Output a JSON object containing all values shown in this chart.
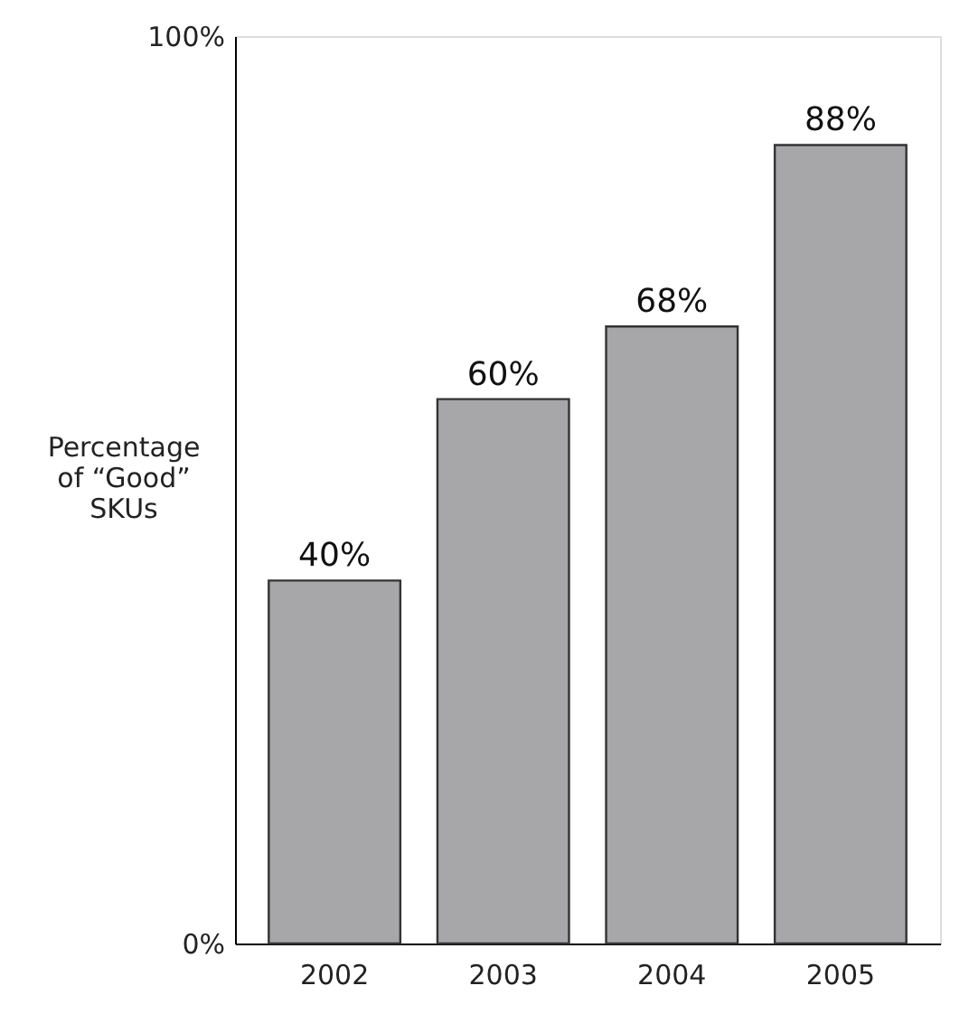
{
  "chart_data": {
    "type": "bar",
    "ylabel": "Percentage\nof “Good”\nSKUs",
    "categories": [
      "2002",
      "2003",
      "2004",
      "2005"
    ],
    "values": [
      40,
      60,
      68,
      88
    ],
    "color": "#a7a7a9",
    "value_labels": [
      "40%",
      "60%",
      "68%",
      "88%"
    ],
    "ylim": [
      0,
      100
    ],
    "yticks": [
      {
        "value": 0,
        "label": "0%"
      },
      {
        "value": 100,
        "label": "100%"
      }
    ],
    "grid": false
  }
}
